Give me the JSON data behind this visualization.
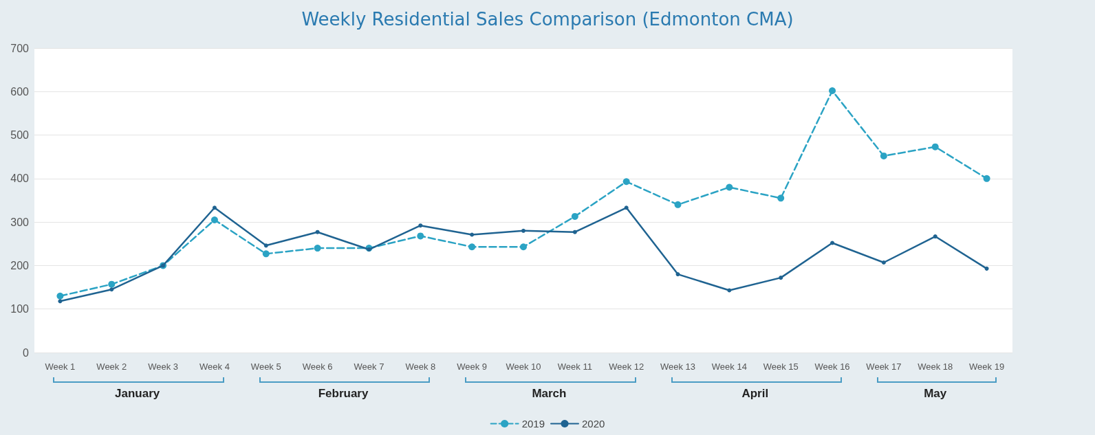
{
  "chart_data": {
    "type": "line",
    "title": "Weekly Residential Sales Comparison (Edmonton CMA)",
    "categories": [
      "Week 1",
      "Week 2",
      "Week 3",
      "Week 4",
      "Week 5",
      "Week 6",
      "Week 7",
      "Week 8",
      "Week 9",
      "Week 10",
      "Week 11",
      "Week 12",
      "Week 13",
      "Week 14",
      "Week 15",
      "Week 16",
      "Week 17",
      "Week 18",
      "Week 19"
    ],
    "series": [
      {
        "name": "2019",
        "color": "#2ba3c4",
        "line_style": "dashed",
        "values": [
          130,
          157,
          200,
          305,
          227,
          240,
          240,
          268,
          243,
          243,
          313,
          393,
          340,
          380,
          355,
          602,
          452,
          473,
          400
        ]
      },
      {
        "name": "2020",
        "color": "#1f6391",
        "line_style": "solid",
        "values": [
          118,
          145,
          200,
          333,
          246,
          277,
          237,
          292,
          271,
          280,
          277,
          333,
          180,
          143,
          172,
          252,
          207,
          267,
          193
        ]
      }
    ],
    "annotations": [
      "January",
      "February",
      "March",
      "April",
      "May"
    ],
    "ylim": [
      0,
      700
    ],
    "yticks": [
      0,
      100,
      200,
      300,
      400,
      500,
      600,
      700
    ],
    "grid": "y",
    "legend": "bottom",
    "marker": "circle"
  }
}
